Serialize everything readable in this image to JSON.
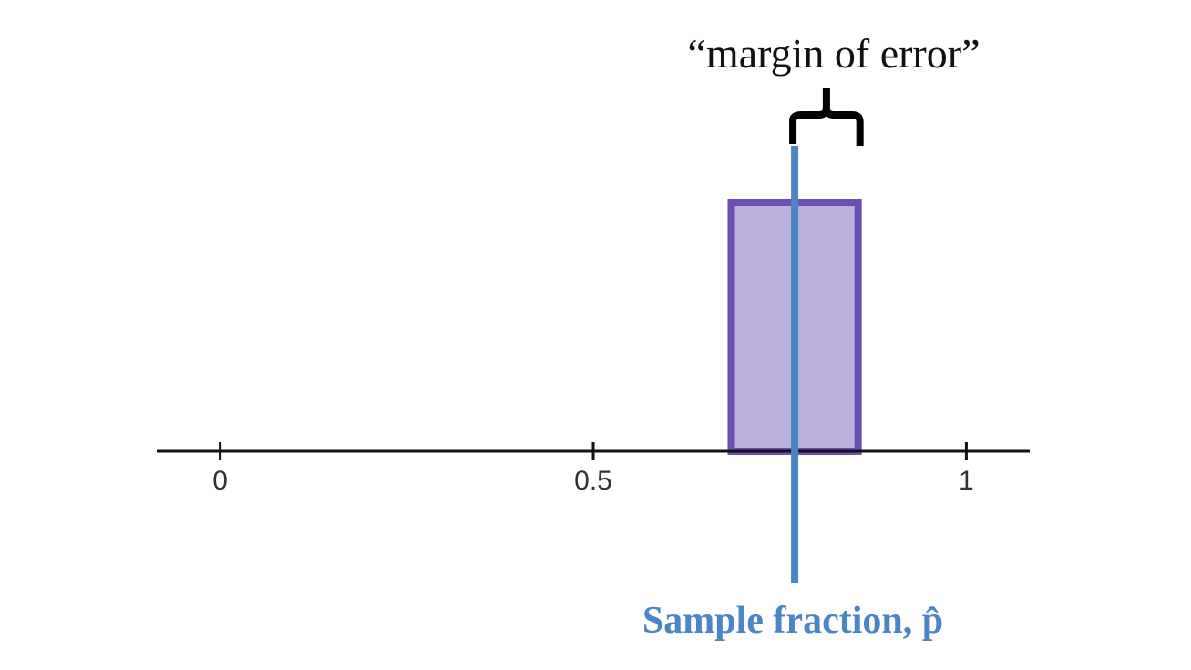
{
  "chart_data": {
    "type": "interval",
    "annotation": "“margin of error”",
    "estimate_label": "Sample fraction, p̂",
    "estimate": 0.77,
    "interval": [
      0.685,
      0.855
    ],
    "xlim": [
      -0.085,
      1.085
    ],
    "xticks": [
      0,
      0.5,
      1
    ],
    "colors": {
      "estimate": "#4a86c5",
      "interval": "#6b4fb3",
      "interval_fill": "#bcb1da",
      "axis": "#111111"
    }
  }
}
